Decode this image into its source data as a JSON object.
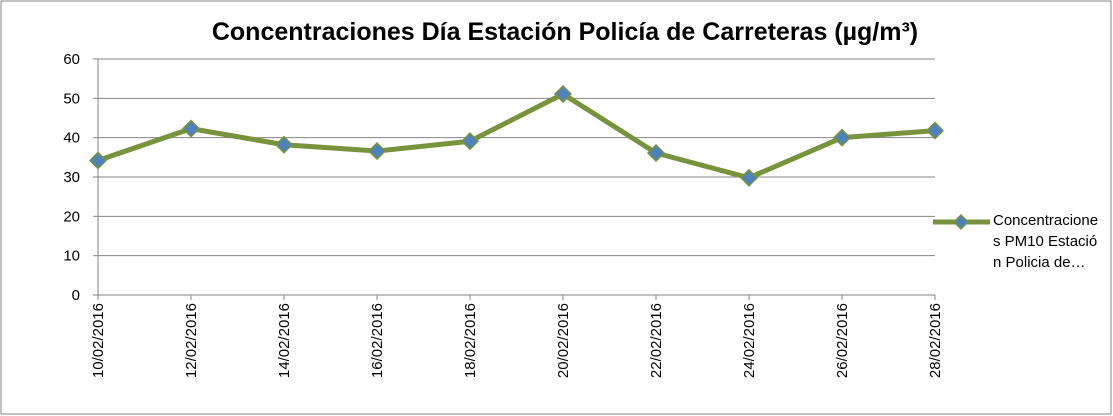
{
  "chart_data": {
    "type": "line",
    "title": "Concentraciones Día Estación Policía de Carreteras (µg/m³)",
    "categories": [
      "10/02/2016",
      "12/02/2016",
      "14/02/2016",
      "16/02/2016",
      "18/02/2016",
      "20/02/2016",
      "22/02/2016",
      "24/02/2016",
      "26/02/2016",
      "28/02/2016"
    ],
    "series": [
      {
        "name": "Concentraciones PM10 Estación Policia de…",
        "color": "#77933c",
        "marker_color": "#4f81bd",
        "values": [
          34.2,
          42.3,
          38.2,
          36.6,
          39.1,
          51.1,
          36.1,
          29.8,
          40.0,
          41.8
        ]
      }
    ],
    "ylim": [
      0,
      60
    ],
    "yticks": [
      0,
      10,
      20,
      30,
      40,
      50,
      60
    ],
    "grid": true,
    "legend": "right"
  }
}
